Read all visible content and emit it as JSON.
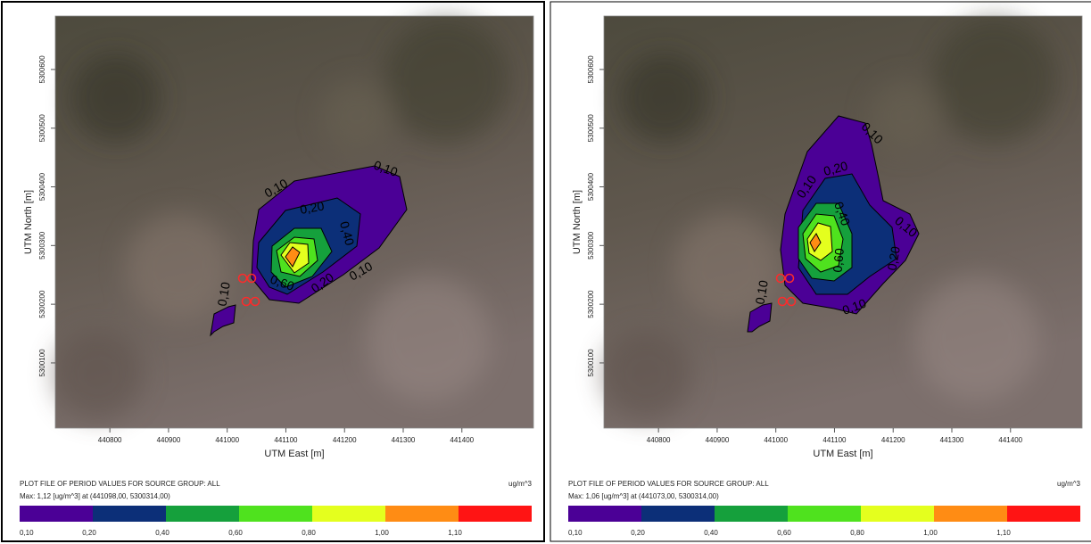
{
  "chart_data": [
    {
      "type": "contour",
      "xlabel": "UTM East [m]",
      "ylabel": "UTM North [m]",
      "title": "PLOT FILE OF PERIOD VALUES FOR SOURCE GROUP: ALL",
      "subtitle": "Max: 1,12 [ug/m^3] at (441098,00, 5300314,00)",
      "unit": "ug/m^3",
      "xlim": [
        440707,
        441522
      ],
      "ylim": [
        5299989,
        5300691
      ],
      "xticks": [
        440800,
        440900,
        441000,
        441100,
        441200,
        441300,
        441400
      ],
      "yticks": [
        5300100,
        5300200,
        5300300,
        5300400,
        5300500,
        5300600
      ],
      "levels": [
        {
          "value": 0.1,
          "label": "0,10"
        },
        {
          "value": 0.2,
          "label": "0,20"
        },
        {
          "value": 0.4,
          "label": "0,40"
        },
        {
          "value": 0.6,
          "label": "0,60"
        },
        {
          "value": 0.8,
          "label": "0,80"
        },
        {
          "value": 1.0,
          "label": "1,00"
        },
        {
          "value": 1.1,
          "label": "1,10"
        }
      ],
      "colors": [
        "#4b0096",
        "#0c2f78",
        "#15a03c",
        "#4fe21e",
        "#e4ff1e",
        "#ff8c14",
        "#ff1414"
      ],
      "contour_labels": [
        "0,10",
        "0,10",
        "0,20",
        "0,40",
        "0,60",
        "0,20",
        "0,10",
        "0,10"
      ]
    },
    {
      "type": "contour",
      "xlabel": "UTM East [m]",
      "ylabel": "UTM North [m]",
      "title": "PLOT FILE OF PERIOD VALUES FOR SOURCE GROUP: ALL",
      "subtitle": "Max: 1,06 [ug/m^3] at (441073,00, 5300314,00)",
      "unit": "ug/m^3",
      "xlim": [
        440707,
        441522
      ],
      "ylim": [
        5299989,
        5300691
      ],
      "xticks": [
        440800,
        440900,
        441000,
        441100,
        441200,
        441300,
        441400
      ],
      "yticks": [
        5300100,
        5300200,
        5300300,
        5300400,
        5300500,
        5300600
      ],
      "levels": [
        {
          "value": 0.1,
          "label": "0,10"
        },
        {
          "value": 0.2,
          "label": "0,20"
        },
        {
          "value": 0.4,
          "label": "0,40"
        },
        {
          "value": 0.6,
          "label": "0,60"
        },
        {
          "value": 0.8,
          "label": "0,80"
        },
        {
          "value": 1.0,
          "label": "1,00"
        },
        {
          "value": 1.1,
          "label": "1,10"
        }
      ],
      "colors": [
        "#4b0096",
        "#0c2f78",
        "#15a03c",
        "#4fe21e",
        "#e4ff1e",
        "#ff8c14",
        "#ff1414"
      ],
      "contour_labels": [
        "0,10",
        "0,10",
        "0,20",
        "0,40",
        "0,60",
        "0,20",
        "0,10",
        "0,10",
        "0,10"
      ]
    }
  ]
}
